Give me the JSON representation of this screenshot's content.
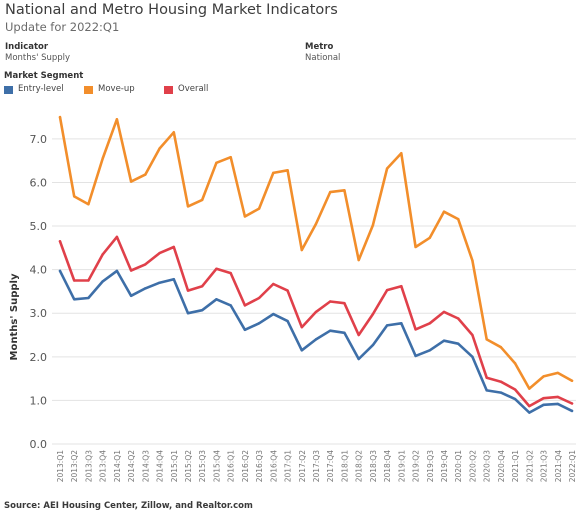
{
  "header": {
    "title": "National and Metro Housing Market Indicators",
    "subtitle": "Update for 2022:Q1"
  },
  "filters": {
    "indicator_label": "Indicator",
    "indicator_value": "Months' Supply",
    "metro_label": "Metro",
    "metro_value": "National"
  },
  "legend": {
    "title": "Market Segment",
    "items": [
      {
        "label": "Entry-level",
        "color": "#3e6fa8"
      },
      {
        "label": "Move-up",
        "color": "#f28e2b"
      },
      {
        "label": "Overall",
        "color": "#e0404a"
      }
    ]
  },
  "footer": {
    "source": "Source: AEI Housing Center, Zillow, and Realtor.com"
  },
  "chart_data": {
    "type": "line",
    "xlabel": "",
    "ylabel": "Months' Supply",
    "ylim": [
      0,
      7.8
    ],
    "yticks": [
      "0.0",
      "1.0",
      "2.0",
      "3.0",
      "4.0",
      "5.0",
      "6.0",
      "7.0"
    ],
    "grid": true,
    "categories": [
      "2013:Q1",
      "2013:Q2",
      "2013:Q3",
      "2013:Q4",
      "2014:Q1",
      "2014:Q2",
      "2014:Q3",
      "2014:Q4",
      "2015:Q1",
      "2015:Q2",
      "2015:Q3",
      "2015:Q4",
      "2016:Q1",
      "2016:Q2",
      "2016:Q3",
      "2016:Q4",
      "2017:Q1",
      "2017:Q2",
      "2017:Q3",
      "2017:Q4",
      "2018:Q1",
      "2018:Q2",
      "2018:Q3",
      "2018:Q4",
      "2019:Q1",
      "2019:Q2",
      "2019:Q3",
      "2019:Q4",
      "2020:Q1",
      "2020:Q2",
      "2020:Q3",
      "2020:Q4",
      "2021:Q1",
      "2021:Q2",
      "2021:Q3",
      "2021:Q4",
      "2022:Q1"
    ],
    "series": [
      {
        "name": "Move-up",
        "color": "#f28e2b",
        "values": [
          7.5,
          5.68,
          5.5,
          6.55,
          7.45,
          6.02,
          6.18,
          6.78,
          7.15,
          5.45,
          5.6,
          6.45,
          6.58,
          5.22,
          5.4,
          6.22,
          6.28,
          4.45,
          5.05,
          5.78,
          5.82,
          4.22,
          5.02,
          6.32,
          6.67,
          4.52,
          4.73,
          5.33,
          5.16,
          4.21,
          2.4,
          2.22,
          1.85,
          1.27,
          1.55,
          1.63,
          1.45
        ]
      },
      {
        "name": "Overall",
        "color": "#e0404a",
        "values": [
          4.65,
          3.75,
          3.75,
          4.35,
          4.75,
          3.98,
          4.12,
          4.38,
          4.52,
          3.52,
          3.62,
          4.02,
          3.92,
          3.18,
          3.35,
          3.67,
          3.52,
          2.68,
          3.03,
          3.27,
          3.23,
          2.5,
          2.98,
          3.53,
          3.62,
          2.63,
          2.77,
          3.03,
          2.88,
          2.5,
          1.52,
          1.43,
          1.25,
          0.87,
          1.05,
          1.08,
          0.93
        ]
      },
      {
        "name": "Entry-level",
        "color": "#3e6fa8",
        "values": [
          3.97,
          3.32,
          3.35,
          3.73,
          3.97,
          3.4,
          3.57,
          3.7,
          3.78,
          3.0,
          3.07,
          3.32,
          3.18,
          2.62,
          2.77,
          2.98,
          2.82,
          2.15,
          2.4,
          2.6,
          2.55,
          1.95,
          2.27,
          2.72,
          2.77,
          2.02,
          2.15,
          2.37,
          2.3,
          2.0,
          1.23,
          1.18,
          1.03,
          0.72,
          0.9,
          0.92,
          0.76
        ]
      }
    ]
  }
}
